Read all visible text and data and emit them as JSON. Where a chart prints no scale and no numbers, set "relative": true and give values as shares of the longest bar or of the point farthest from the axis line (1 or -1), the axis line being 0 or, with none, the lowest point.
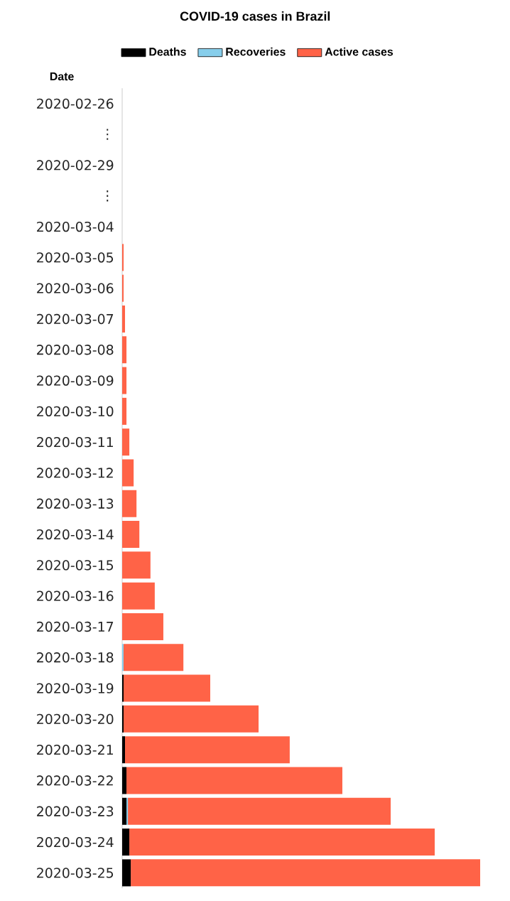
{
  "chart_data": {
    "type": "bar",
    "orientation": "horizontal",
    "stacked": true,
    "relative": true,
    "title": "COVID-19 cases in Brazil",
    "ylabel": "Date",
    "legend": "top",
    "categories": [
      "2020-02-26",
      "⋮",
      "2020-02-29",
      "⋮",
      "2020-03-04",
      "2020-03-05",
      "2020-03-06",
      "2020-03-07",
      "2020-03-08",
      "2020-03-09",
      "2020-03-10",
      "2020-03-11",
      "2020-03-12",
      "2020-03-13",
      "2020-03-14",
      "2020-03-15",
      "2020-03-16",
      "2020-03-17",
      "2020-03-18",
      "2020-03-19",
      "2020-03-20",
      "2020-03-21",
      "2020-03-22",
      "2020-03-23",
      "2020-03-24",
      "2020-03-25"
    ],
    "series": [
      {
        "name": "Deaths",
        "color": "#000000",
        "values": [
          0,
          null,
          0,
          null,
          0,
          0,
          0,
          0,
          0,
          0,
          0,
          0,
          0,
          0,
          0,
          0,
          0,
          0,
          0,
          0.004,
          0.004,
          0.008,
          0.012,
          0.012,
          0.02,
          0.024
        ]
      },
      {
        "name": "Recoveries",
        "color": "#87ceeb",
        "values": [
          0,
          null,
          0,
          null,
          0,
          0,
          0,
          0,
          0,
          0,
          0,
          0,
          0,
          0,
          0,
          0,
          0,
          0,
          0.004,
          0,
          0,
          0,
          0,
          0.004,
          0,
          0
        ]
      },
      {
        "name": "Active cases",
        "color": "#ff6347",
        "values": [
          0,
          null,
          0,
          null,
          0,
          0.004,
          0.004,
          0.008,
          0.012,
          0.012,
          0.012,
          0.02,
          0.032,
          0.04,
          0.048,
          0.079,
          0.091,
          0.115,
          0.167,
          0.242,
          0.377,
          0.46,
          0.603,
          0.734,
          0.853,
          0.976
        ]
      }
    ]
  }
}
